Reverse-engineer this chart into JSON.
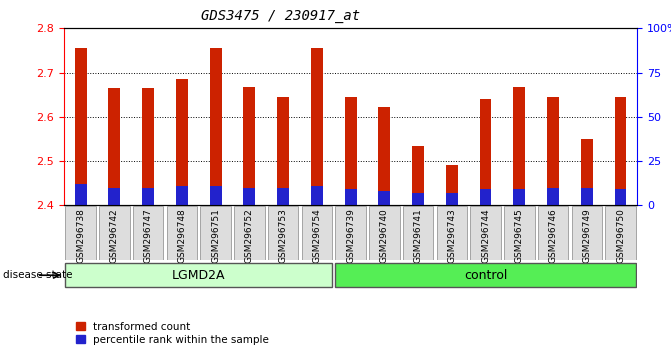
{
  "title": "GDS3475 / 230917_at",
  "samples": [
    "GSM296738",
    "GSM296742",
    "GSM296747",
    "GSM296748",
    "GSM296751",
    "GSM296752",
    "GSM296753",
    "GSM296754",
    "GSM296739",
    "GSM296740",
    "GSM296741",
    "GSM296743",
    "GSM296744",
    "GSM296745",
    "GSM296746",
    "GSM296749",
    "GSM296750"
  ],
  "transformed_count": [
    2.755,
    2.665,
    2.665,
    2.685,
    2.755,
    2.668,
    2.645,
    2.755,
    2.645,
    2.623,
    2.535,
    2.49,
    2.64,
    2.668,
    2.645,
    2.55,
    2.645
  ],
  "percentile_rank_pct": [
    12,
    10,
    10,
    11,
    11,
    10,
    10,
    11,
    9,
    8,
    7,
    7,
    9,
    9,
    10,
    10,
    9
  ],
  "ymin": 2.4,
  "ymax": 2.8,
  "yticks": [
    2.4,
    2.5,
    2.6,
    2.7,
    2.8
  ],
  "right_yticks": [
    0,
    25,
    50,
    75,
    100
  ],
  "right_yticklabels": [
    "0",
    "25",
    "50",
    "75",
    "100%"
  ],
  "bar_color": "#cc2200",
  "percentile_color": "#2222cc",
  "background_color": "#ffffff",
  "tick_label_fontsize": 6.5,
  "title_fontsize": 10,
  "lgmd2a_color": "#ccffcc",
  "control_color": "#55ee55",
  "n_lgmd2a": 8,
  "n_control": 9,
  "disease_state_label": "disease state",
  "lgmd2a_label": "LGMD2A",
  "control_label": "control",
  "legend_transformed": "transformed count",
  "legend_percentile": "percentile rank within the sample",
  "sample_box_color": "#dddddd"
}
